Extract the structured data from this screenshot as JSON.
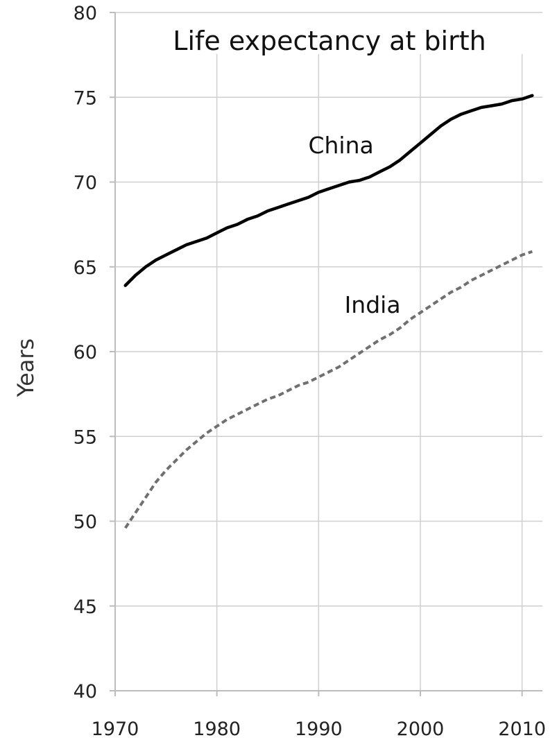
{
  "chart_data": {
    "type": "line",
    "title": "Life expectancy at birth",
    "xlabel": "",
    "ylabel": "Years",
    "xlim": [
      1970,
      2012
    ],
    "ylim": [
      40,
      80
    ],
    "xticks": [
      1970,
      1980,
      1990,
      2000,
      2010
    ],
    "yticks": [
      40,
      45,
      50,
      55,
      60,
      65,
      70,
      75,
      80
    ],
    "grid": true,
    "series": [
      {
        "name": "China",
        "style": "solid",
        "color": "#000000",
        "x": [
          1971,
          1972,
          1973,
          1974,
          1975,
          1976,
          1977,
          1978,
          1979,
          1980,
          1981,
          1982,
          1983,
          1984,
          1985,
          1986,
          1987,
          1988,
          1989,
          1990,
          1991,
          1992,
          1993,
          1994,
          1995,
          1996,
          1997,
          1998,
          1999,
          2000,
          2001,
          2002,
          2003,
          2004,
          2005,
          2006,
          2007,
          2008,
          2009,
          2010,
          2011
        ],
        "values": [
          63.9,
          64.5,
          65.0,
          65.4,
          65.7,
          66.0,
          66.3,
          66.5,
          66.7,
          67.0,
          67.3,
          67.5,
          67.8,
          68.0,
          68.3,
          68.5,
          68.7,
          68.9,
          69.1,
          69.4,
          69.6,
          69.8,
          70.0,
          70.1,
          70.3,
          70.6,
          70.9,
          71.3,
          71.8,
          72.3,
          72.8,
          73.3,
          73.7,
          74.0,
          74.2,
          74.4,
          74.5,
          74.6,
          74.8,
          74.9,
          75.1
        ]
      },
      {
        "name": "India",
        "style": "dashed",
        "color": "#707070",
        "x": [
          1971,
          1972,
          1973,
          1974,
          1975,
          1976,
          1977,
          1978,
          1979,
          1980,
          1981,
          1982,
          1983,
          1984,
          1985,
          1986,
          1987,
          1988,
          1989,
          1990,
          1991,
          1992,
          1993,
          1994,
          1995,
          1996,
          1997,
          1998,
          1999,
          2000,
          2001,
          2002,
          2003,
          2004,
          2005,
          2006,
          2007,
          2008,
          2009,
          2010,
          2011
        ],
        "values": [
          49.6,
          50.5,
          51.4,
          52.3,
          53.0,
          53.6,
          54.2,
          54.7,
          55.2,
          55.6,
          56.0,
          56.3,
          56.6,
          56.9,
          57.2,
          57.4,
          57.7,
          58.0,
          58.2,
          58.5,
          58.8,
          59.1,
          59.5,
          59.9,
          60.3,
          60.7,
          61.0,
          61.4,
          61.9,
          62.3,
          62.7,
          63.1,
          63.5,
          63.8,
          64.2,
          64.5,
          64.8,
          65.1,
          65.4,
          65.7,
          65.9
        ]
      }
    ]
  }
}
